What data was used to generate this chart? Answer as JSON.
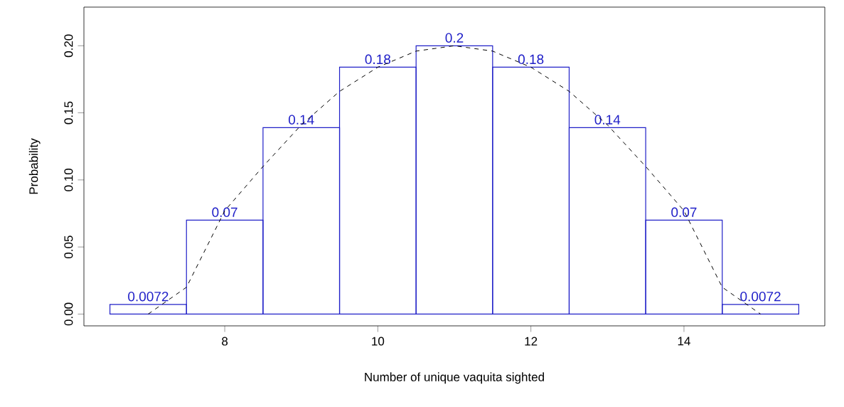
{
  "chart_data": {
    "type": "histogram",
    "xlabel": "Number of unique vaquita sighted",
    "ylabel": "Probability",
    "bins": [
      6.5,
      7.5,
      8.5,
      9.5,
      10.5,
      11.5,
      12.5,
      13.5,
      14.5,
      15.5
    ],
    "values": [
      0.0072,
      0.07,
      0.139,
      0.184,
      0.2,
      0.184,
      0.139,
      0.07,
      0.0072
    ],
    "value_labels": [
      "0.0072",
      "0.07",
      "0.14",
      "0.18",
      "0.2",
      "0.18",
      "0.14",
      "0.07",
      "0.0072"
    ],
    "color": "#2020c8",
    "series": [
      {
        "type": "line",
        "color": "#000000",
        "line_style": "dashed",
        "x": [
          7,
          7.5,
          8,
          8.5,
          9,
          9.5,
          10,
          10.5,
          11,
          11.5,
          12,
          12.5,
          13,
          13.5,
          14,
          14.5,
          15
        ],
        "values": [
          0,
          0.02,
          0.077,
          0.11,
          0.141,
          0.166,
          0.184,
          0.196,
          0.2,
          0.196,
          0.184,
          0.166,
          0.141,
          0.11,
          0.077,
          0.02,
          0
        ]
      }
    ],
    "xlim": [
      6.16,
      15.84
    ],
    "ylim": [
      -0.0088,
      0.2288
    ],
    "xticks": [
      8,
      10,
      12,
      14
    ],
    "yticks": [
      {
        "value": 0,
        "label": "0.00"
      },
      {
        "value": 0.05,
        "label": "0.05"
      },
      {
        "value": 0.1,
        "label": "0.10"
      },
      {
        "value": 0.15,
        "label": "0.15"
      },
      {
        "value": 0.2,
        "label": "0.20"
      }
    ]
  }
}
